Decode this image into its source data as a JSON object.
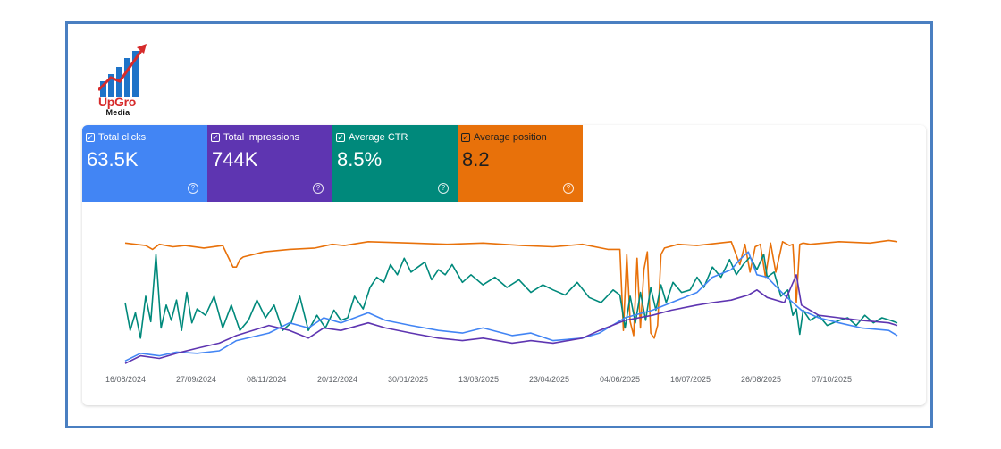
{
  "logo": {
    "name": "UpGro",
    "sub": "Media"
  },
  "metrics": [
    {
      "key": "clicks",
      "label": "Total clicks",
      "value": "63.5K",
      "checked": true,
      "color": "#4285f4"
    },
    {
      "key": "impressions",
      "label": "Total impressions",
      "value": "744K",
      "checked": true,
      "color": "#5e35b1"
    },
    {
      "key": "ctr",
      "label": "Average CTR",
      "value": "8.5%",
      "checked": true,
      "color": "#00897b"
    },
    {
      "key": "position",
      "label": "Average position",
      "value": "8.2",
      "checked": true,
      "color": "#e8710a"
    }
  ],
  "chart_data": {
    "type": "line",
    "x_tick_labels": [
      "16/08/2024",
      "27/09/2024",
      "08/11/2024",
      "20/12/2024",
      "30/01/2025",
      "13/03/2025",
      "23/04/2025",
      "04/06/2025",
      "16/07/2025",
      "26/08/2025",
      "07/10/2025"
    ],
    "x_range": [
      "2024-08-16",
      "2025-11-10"
    ],
    "y_axes_visible": false,
    "grid": false,
    "series": [
      {
        "key": "position",
        "color": "#e8710a",
        "scale": [
          0,
          100
        ],
        "dates": [
          "2024-08-16",
          "2024-08-28",
          "2024-09-01",
          "2024-09-05",
          "2024-09-13",
          "2024-09-20",
          "2024-10-01",
          "2024-10-12",
          "2024-10-18",
          "2024-10-20",
          "2024-10-22",
          "2024-10-24",
          "2024-11-05",
          "2024-11-20",
          "2024-12-05",
          "2024-12-15",
          "2024-12-22",
          "2025-01-05",
          "2025-01-30",
          "2025-02-20",
          "2025-03-13",
          "2025-04-05",
          "2025-04-23",
          "2025-05-10",
          "2025-05-25",
          "2025-06-01",
          "2025-06-03",
          "2025-06-05",
          "2025-06-07",
          "2025-06-09",
          "2025-06-11",
          "2025-06-13",
          "2025-06-15",
          "2025-06-17",
          "2025-06-19",
          "2025-06-21",
          "2025-06-23",
          "2025-06-25",
          "2025-06-27",
          "2025-07-05",
          "2025-07-16",
          "2025-08-05",
          "2025-08-10",
          "2025-08-13",
          "2025-08-16",
          "2025-08-19",
          "2025-08-22",
          "2025-08-25",
          "2025-08-28",
          "2025-08-31",
          "2025-09-04",
          "2025-09-08",
          "2025-09-10",
          "2025-09-12",
          "2025-09-14",
          "2025-09-16",
          "2025-09-20",
          "2025-10-07",
          "2025-10-25",
          "2025-11-05",
          "2025-11-10"
        ],
        "values": [
          97,
          95,
          92,
          96,
          94,
          95,
          93,
          95,
          78,
          78,
          84,
          86,
          90,
          92,
          93,
          96,
          95,
          98,
          97,
          96,
          97,
          95,
          94,
          96,
          92,
          92,
          28,
          88,
          35,
          24,
          85,
          30,
          76,
          90,
          26,
          22,
          32,
          88,
          93,
          96,
          95,
          98,
          80,
          96,
          74,
          94,
          96,
          70,
          97,
          74,
          98,
          95,
          96,
          50,
          96,
          97,
          96,
          98,
          97,
          99,
          98
        ]
      },
      {
        "key": "ctr",
        "color": "#00897b",
        "scale": [
          0,
          100
        ],
        "dates": [
          "2024-08-16",
          "2024-08-19",
          "2024-08-22",
          "2024-08-25",
          "2024-08-28",
          "2024-08-31",
          "2024-09-03",
          "2024-09-06",
          "2024-09-09",
          "2024-09-12",
          "2024-09-15",
          "2024-09-18",
          "2024-09-21",
          "2024-09-24",
          "2024-09-27",
          "2024-10-02",
          "2024-10-07",
          "2024-10-12",
          "2024-10-17",
          "2024-10-22",
          "2024-10-27",
          "2024-11-01",
          "2024-11-06",
          "2024-11-11",
          "2024-11-16",
          "2024-11-21",
          "2024-11-26",
          "2024-12-01",
          "2024-12-06",
          "2024-12-11",
          "2024-12-16",
          "2024-12-20",
          "2024-12-24",
          "2024-12-28",
          "2025-01-02",
          "2025-01-06",
          "2025-01-10",
          "2025-01-14",
          "2025-01-18",
          "2025-01-22",
          "2025-01-26",
          "2025-01-30",
          "2025-02-03",
          "2025-02-07",
          "2025-02-11",
          "2025-02-15",
          "2025-02-19",
          "2025-02-23",
          "2025-03-01",
          "2025-03-06",
          "2025-03-13",
          "2025-03-20",
          "2025-03-27",
          "2025-04-03",
          "2025-04-10",
          "2025-04-17",
          "2025-04-23",
          "2025-04-30",
          "2025-05-07",
          "2025-05-14",
          "2025-05-21",
          "2025-05-28",
          "2025-06-01",
          "2025-06-04",
          "2025-06-07",
          "2025-06-10",
          "2025-06-13",
          "2025-06-16",
          "2025-06-19",
          "2025-06-22",
          "2025-06-25",
          "2025-06-28",
          "2025-07-02",
          "2025-07-07",
          "2025-07-12",
          "2025-07-16",
          "2025-07-20",
          "2025-07-25",
          "2025-07-30",
          "2025-08-04",
          "2025-08-08",
          "2025-08-12",
          "2025-08-16",
          "2025-08-20",
          "2025-08-24",
          "2025-08-26",
          "2025-08-30",
          "2025-09-03",
          "2025-09-07",
          "2025-09-10",
          "2025-09-12",
          "2025-09-14",
          "2025-09-16",
          "2025-09-20",
          "2025-09-25",
          "2025-09-30",
          "2025-10-07",
          "2025-10-12",
          "2025-10-17",
          "2025-10-22",
          "2025-10-27",
          "2025-11-01",
          "2025-11-06",
          "2025-11-10"
        ],
        "values": [
          50,
          28,
          42,
          22,
          55,
          35,
          88,
          30,
          48,
          36,
          52,
          28,
          58,
          34,
          45,
          40,
          55,
          30,
          48,
          28,
          36,
          52,
          38,
          48,
          28,
          34,
          55,
          28,
          40,
          30,
          44,
          36,
          38,
          55,
          45,
          62,
          70,
          66,
          80,
          72,
          85,
          74,
          78,
          82,
          68,
          76,
          72,
          80,
          66,
          72,
          64,
          70,
          62,
          68,
          58,
          64,
          60,
          56,
          66,
          54,
          50,
          60,
          56,
          30,
          55,
          34,
          58,
          36,
          62,
          44,
          64,
          50,
          66,
          58,
          60,
          70,
          62,
          78,
          70,
          84,
          72,
          80,
          86,
          76,
          88,
          70,
          74,
          55,
          60,
          40,
          45,
          25,
          44,
          36,
          40,
          32,
          36,
          38,
          32,
          40,
          34,
          38,
          36,
          34
        ]
      },
      {
        "key": "clicks",
        "color": "#4285f4",
        "scale": [
          0,
          100
        ],
        "dates": [
          "2024-08-16",
          "2024-08-25",
          "2024-09-05",
          "2024-09-15",
          "2024-09-27",
          "2024-10-10",
          "2024-10-20",
          "2024-11-08",
          "2024-11-20",
          "2024-12-01",
          "2024-12-10",
          "2024-12-20",
          "2025-01-05",
          "2025-01-15",
          "2025-01-30",
          "2025-02-15",
          "2025-03-01",
          "2025-03-13",
          "2025-03-30",
          "2025-04-10",
          "2025-04-23",
          "2025-05-10",
          "2025-05-20",
          "2025-06-04",
          "2025-06-20",
          "2025-07-01",
          "2025-07-16",
          "2025-07-25",
          "2025-08-05",
          "2025-08-10",
          "2025-08-15",
          "2025-08-20",
          "2025-08-26",
          "2025-09-05",
          "2025-09-15",
          "2025-09-25",
          "2025-10-07",
          "2025-10-20",
          "2025-11-05",
          "2025-11-10"
        ],
        "values": [
          4,
          10,
          8,
          11,
          10,
          12,
          20,
          26,
          34,
          30,
          38,
          34,
          42,
          36,
          32,
          28,
          26,
          30,
          24,
          26,
          20,
          22,
          26,
          38,
          44,
          50,
          58,
          70,
          76,
          84,
          90,
          72,
          70,
          56,
          44,
          38,
          34,
          30,
          28,
          24
        ]
      },
      {
        "key": "impressions",
        "color": "#5e35b1",
        "scale": [
          0,
          100
        ],
        "dates": [
          "2024-08-16",
          "2024-08-25",
          "2024-09-05",
          "2024-09-15",
          "2024-09-27",
          "2024-10-10",
          "2024-10-20",
          "2024-11-08",
          "2024-11-20",
          "2024-12-01",
          "2024-12-10",
          "2024-12-20",
          "2025-01-05",
          "2025-01-15",
          "2025-01-30",
          "2025-02-15",
          "2025-03-01",
          "2025-03-13",
          "2025-03-30",
          "2025-04-10",
          "2025-04-23",
          "2025-05-10",
          "2025-05-20",
          "2025-06-04",
          "2025-06-20",
          "2025-07-01",
          "2025-07-16",
          "2025-07-25",
          "2025-08-05",
          "2025-08-10",
          "2025-08-15",
          "2025-08-20",
          "2025-08-26",
          "2025-09-05",
          "2025-09-12",
          "2025-09-15",
          "2025-09-25",
          "2025-10-07",
          "2025-10-20",
          "2025-11-05",
          "2025-11-10"
        ],
        "values": [
          2,
          8,
          6,
          10,
          14,
          18,
          24,
          32,
          28,
          22,
          30,
          28,
          34,
          30,
          26,
          22,
          20,
          22,
          18,
          20,
          18,
          22,
          28,
          36,
          40,
          44,
          48,
          50,
          52,
          54,
          56,
          60,
          54,
          50,
          72,
          48,
          40,
          38,
          36,
          34,
          32
        ]
      }
    ]
  }
}
